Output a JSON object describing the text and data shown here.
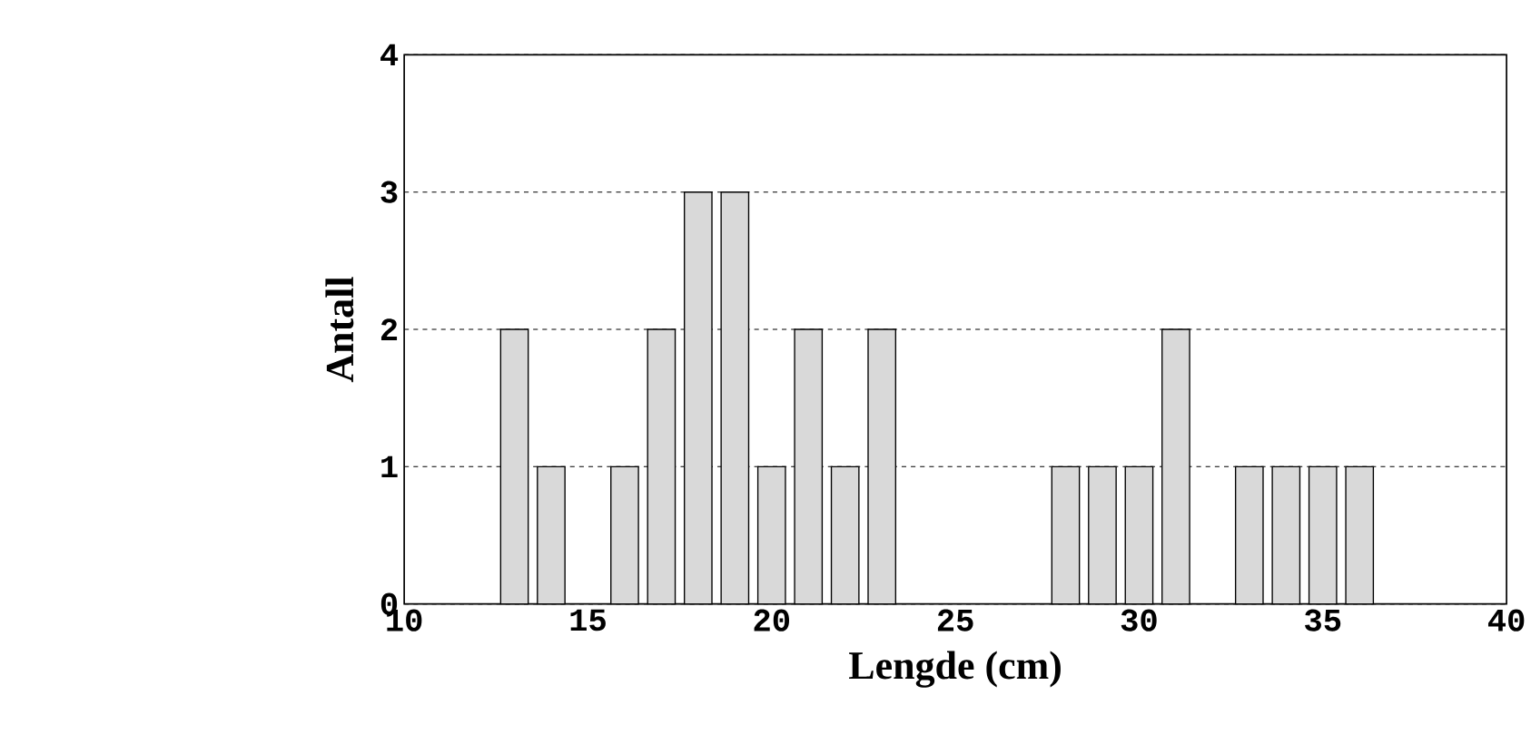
{
  "chart_data": {
    "type": "bar",
    "xlabel": "Lengde (cm)",
    "ylabel": "Antall",
    "x": [
      13,
      14,
      16,
      17,
      18,
      19,
      20,
      21,
      22,
      23,
      28,
      29,
      30,
      31,
      33,
      34,
      35,
      36
    ],
    "values": [
      2,
      1,
      1,
      2,
      3,
      3,
      1,
      2,
      1,
      2,
      1,
      1,
      1,
      2,
      1,
      1,
      1,
      1
    ],
    "color": "#d9d9d9",
    "xlim": [
      10,
      40
    ],
    "ylim": [
      0,
      4
    ],
    "xticks": [
      10,
      15,
      20,
      25,
      30,
      35,
      40
    ],
    "yticks": [
      0,
      1,
      2,
      3,
      4
    ],
    "grid": "y"
  }
}
